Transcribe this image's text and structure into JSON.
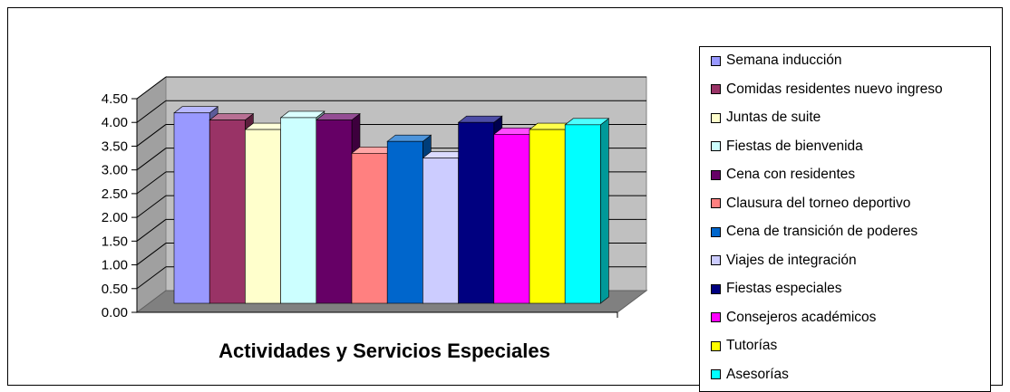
{
  "chart_data": {
    "type": "bar",
    "title": "Actividades y Servicios Especiales",
    "xlabel": "",
    "ylabel": "",
    "ylim": [
      0,
      4.5
    ],
    "yticks": [
      "0.00",
      "0.50",
      "1.00",
      "1.50",
      "2.00",
      "2.50",
      "3.00",
      "3.50",
      "4.00",
      "4.50"
    ],
    "grid": true,
    "legend_position": "right",
    "style": "3d-clustered-column",
    "series": [
      {
        "name": "Semana inducción",
        "value": 4.2,
        "color": "#9999FF"
      },
      {
        "name": "Comidas residentes nuevo ingreso",
        "value": 4.05,
        "color": "#993366"
      },
      {
        "name": "Juntas de suite",
        "value": 3.85,
        "color": "#FFFFCC"
      },
      {
        "name": "Fiestas de bienvenida",
        "value": 4.1,
        "color": "#CCFFFF"
      },
      {
        "name": "Cena con residentes",
        "value": 4.05,
        "color": "#660066"
      },
      {
        "name": "Clausura del torneo deportivo",
        "value": 3.35,
        "color": "#FF8080"
      },
      {
        "name": "Cena de transición de poderes",
        "value": 3.6,
        "color": "#0066CC"
      },
      {
        "name": "Viajes de integración",
        "value": 3.25,
        "color": "#CCCCFF"
      },
      {
        "name": "Fiestas especiales",
        "value": 4.0,
        "color": "#000080"
      },
      {
        "name": "Consejeros académicos",
        "value": 3.75,
        "color": "#FF00FF"
      },
      {
        "name": "Tutorías",
        "value": 3.85,
        "color": "#FFFF00"
      },
      {
        "name": "Asesorías",
        "value": 3.95,
        "color": "#00FFFF"
      }
    ]
  }
}
